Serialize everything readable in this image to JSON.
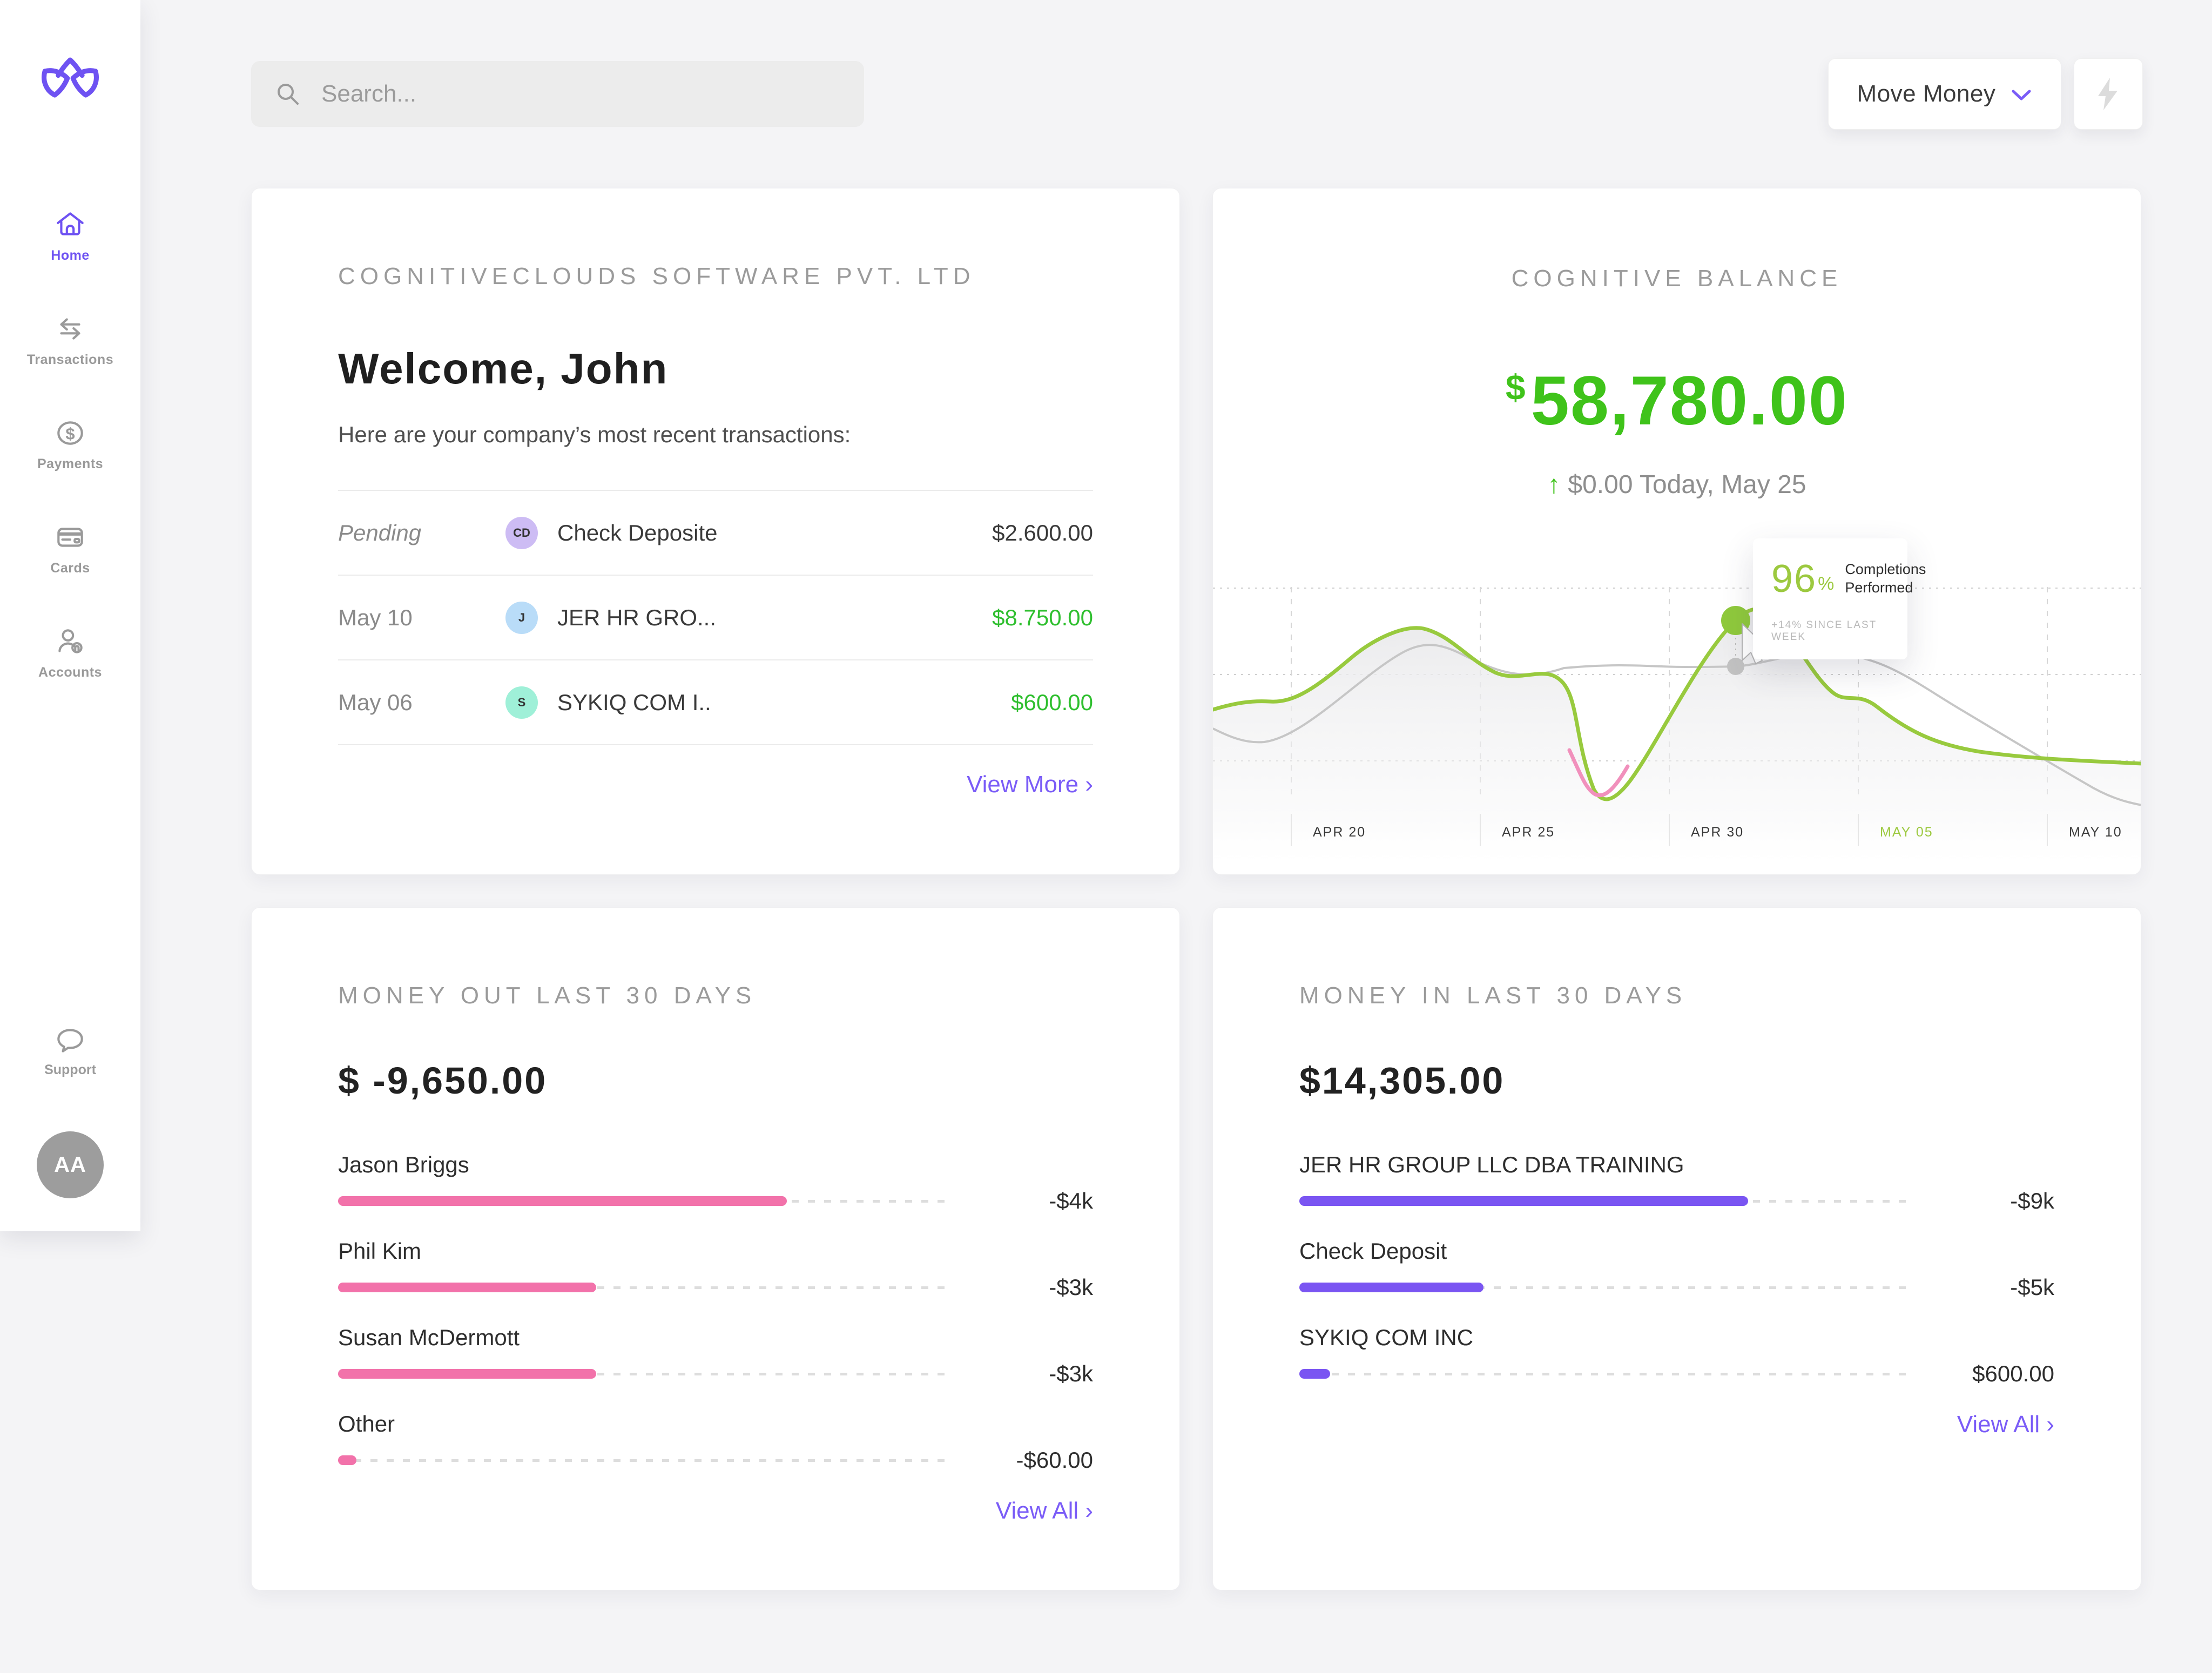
{
  "colors": {
    "accent_purple": "#6e52f2",
    "link_purple": "#7a5cf7",
    "balance_green": "#3fc31a",
    "amount_green": "#2fbf2f",
    "chart_green": "#98ca3e",
    "chart_gray": "#c6c6c6",
    "chart_pink": "#f190bc",
    "bar_pink": "#f272aa",
    "bar_purple": "#7a55f2",
    "muted_gray": "#9a9a9a",
    "dark_text": "#3a3a3a"
  },
  "sidebar": {
    "items": [
      {
        "label": "Home",
        "active": true
      },
      {
        "label": "Transactions",
        "active": false
      },
      {
        "label": "Payments",
        "active": false
      },
      {
        "label": "Cards",
        "active": false
      },
      {
        "label": "Accounts",
        "active": false
      }
    ],
    "support_label": "Support",
    "avatar_initials": "AA"
  },
  "topbar": {
    "search_placeholder": "Search...",
    "move_money_label": "Move Money"
  },
  "company_card": {
    "title": "COGNITIVECLOUDS SOFTWARE PVT. LTD",
    "welcome": "Welcome, John",
    "subtitle": "Here are your company’s most recent transactions:",
    "transactions": [
      {
        "date": "Pending",
        "initials": "CD",
        "name": "Check Deposite",
        "amount": "$2.600.00",
        "amount_color": "#3a3a3a",
        "avatar_bg": "#cdbcf4"
      },
      {
        "date": "May 10",
        "initials": "J",
        "name": "JER HR GRO...",
        "amount": "$8.750.00",
        "amount_color": "#2fbf2f",
        "avatar_bg": "#b9dcf8"
      },
      {
        "date": "May 06",
        "initials": "S",
        "name": "SYKIQ COM I..",
        "amount": "$600.00",
        "amount_color": "#2fbf2f",
        "avatar_bg": "#9ff0d8"
      }
    ],
    "view_more_label": "View More ›"
  },
  "balance_card": {
    "title": "COGNITIVE BALANCE",
    "currency": "$",
    "amount": "58,780.00",
    "delta_arrow": "↑",
    "delta_text": "$0.00 Today, May 25",
    "tooltip": {
      "percent": "96",
      "percent_sign": "%",
      "label": "Completions Performed",
      "sub": "+14% SINCE LAST WEEK"
    },
    "chart_data": {
      "type": "area",
      "x_labels": [
        "APR 20",
        "APR 25",
        "APR 30",
        "MAY 05",
        "MAY 10"
      ],
      "highlighted_x_label": "MAY 05",
      "grid": {
        "h_lines": 3,
        "v_lines": 5,
        "style": "dashed"
      },
      "series": [
        {
          "name": "balance-trend",
          "color": "#98ca3e",
          "points_pct_x_y_from_top": [
            [
              0,
              46
            ],
            [
              8,
              44
            ],
            [
              23,
              19
            ],
            [
              29,
              23
            ],
            [
              37,
              34
            ],
            [
              41,
              77
            ],
            [
              48,
              55
            ],
            [
              56,
              16
            ],
            [
              58,
              13
            ],
            [
              67,
              40
            ],
            [
              70,
              41
            ],
            [
              78,
              55
            ],
            [
              87,
              61
            ],
            [
              100,
              63
            ]
          ]
        },
        {
          "name": "previous-period",
          "color": "#c6c6c6",
          "points_pct_x_y_from_top": [
            [
              0,
              52
            ],
            [
              5,
              57
            ],
            [
              24,
              23
            ],
            [
              33,
              34
            ],
            [
              40,
              30
            ],
            [
              48,
              31
            ],
            [
              56,
              31
            ],
            [
              63,
              29
            ],
            [
              67,
              27
            ],
            [
              74,
              31
            ],
            [
              81,
              46
            ],
            [
              90,
              59
            ],
            [
              100,
              77
            ]
          ]
        }
      ],
      "dip_segment_color": "#f190bc",
      "marker": {
        "series": "balance-trend",
        "near_label": "MAY 05",
        "value": "96% Completions Performed",
        "sub": "+14% SINCE LAST WEEK"
      }
    }
  },
  "money_out": {
    "title": "MONEY OUT LAST 30 DAYS",
    "amount": "$ -9,650.00",
    "rows": [
      {
        "label": "Jason Briggs",
        "value": "-$4k",
        "pct": 73
      },
      {
        "label": "Phil Kim",
        "value": "-$3k",
        "pct": 42
      },
      {
        "label": "Susan McDermott",
        "value": "-$3k",
        "pct": 42
      },
      {
        "label": "Other",
        "value": "-$60.00",
        "pct": 3
      }
    ],
    "view_all_label": "View All ›"
  },
  "money_in": {
    "title": "MONEY IN LAST 30 DAYS",
    "amount": "$14,305.00",
    "rows": [
      {
        "label": "JER HR GROUP LLC DBA TRAINING",
        "value": "-$9k",
        "pct": 73
      },
      {
        "label": "Check Deposit",
        "value": "-$5k",
        "pct": 30
      },
      {
        "label": "SYKIQ COM INC",
        "value": "$600.00",
        "pct": 5
      }
    ],
    "view_all_label": "View All ›"
  }
}
